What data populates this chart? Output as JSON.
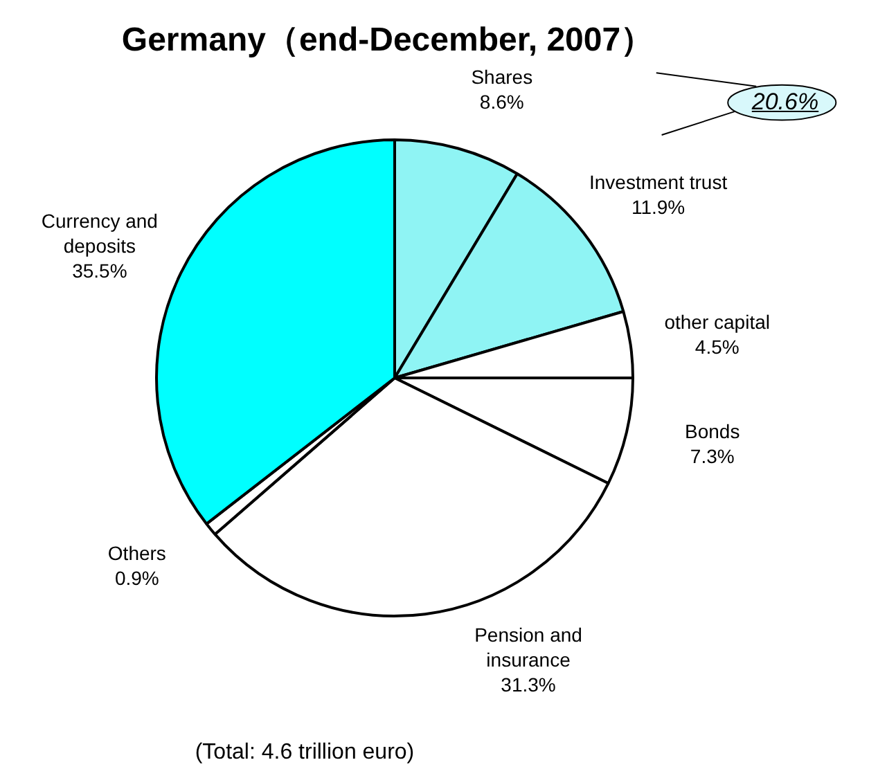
{
  "chart_data": {
    "type": "pie",
    "title": "Germany（end-December, 2007）",
    "categories": [
      "Shares",
      "Investment trust",
      "other capital",
      "Bonds",
      "Pension and insurance",
      "Others",
      "Currency and deposits"
    ],
    "values": [
      8.6,
      11.9,
      4.5,
      7.3,
      31.3,
      0.9,
      35.5
    ],
    "value_labels": [
      "8.6%",
      "11.9%",
      "4.5%",
      "7.3%",
      "31.3%",
      "0.9%",
      "35.5%"
    ],
    "colors": [
      "#8ff4f4",
      "#8ff4f4",
      "#ffffff",
      "#ffffff",
      "#ffffff",
      "#ffffff",
      "#00ffff"
    ],
    "annotations": [
      "20.6%",
      "(Total: 4.6 trillion euro)"
    ],
    "legend": false
  }
}
